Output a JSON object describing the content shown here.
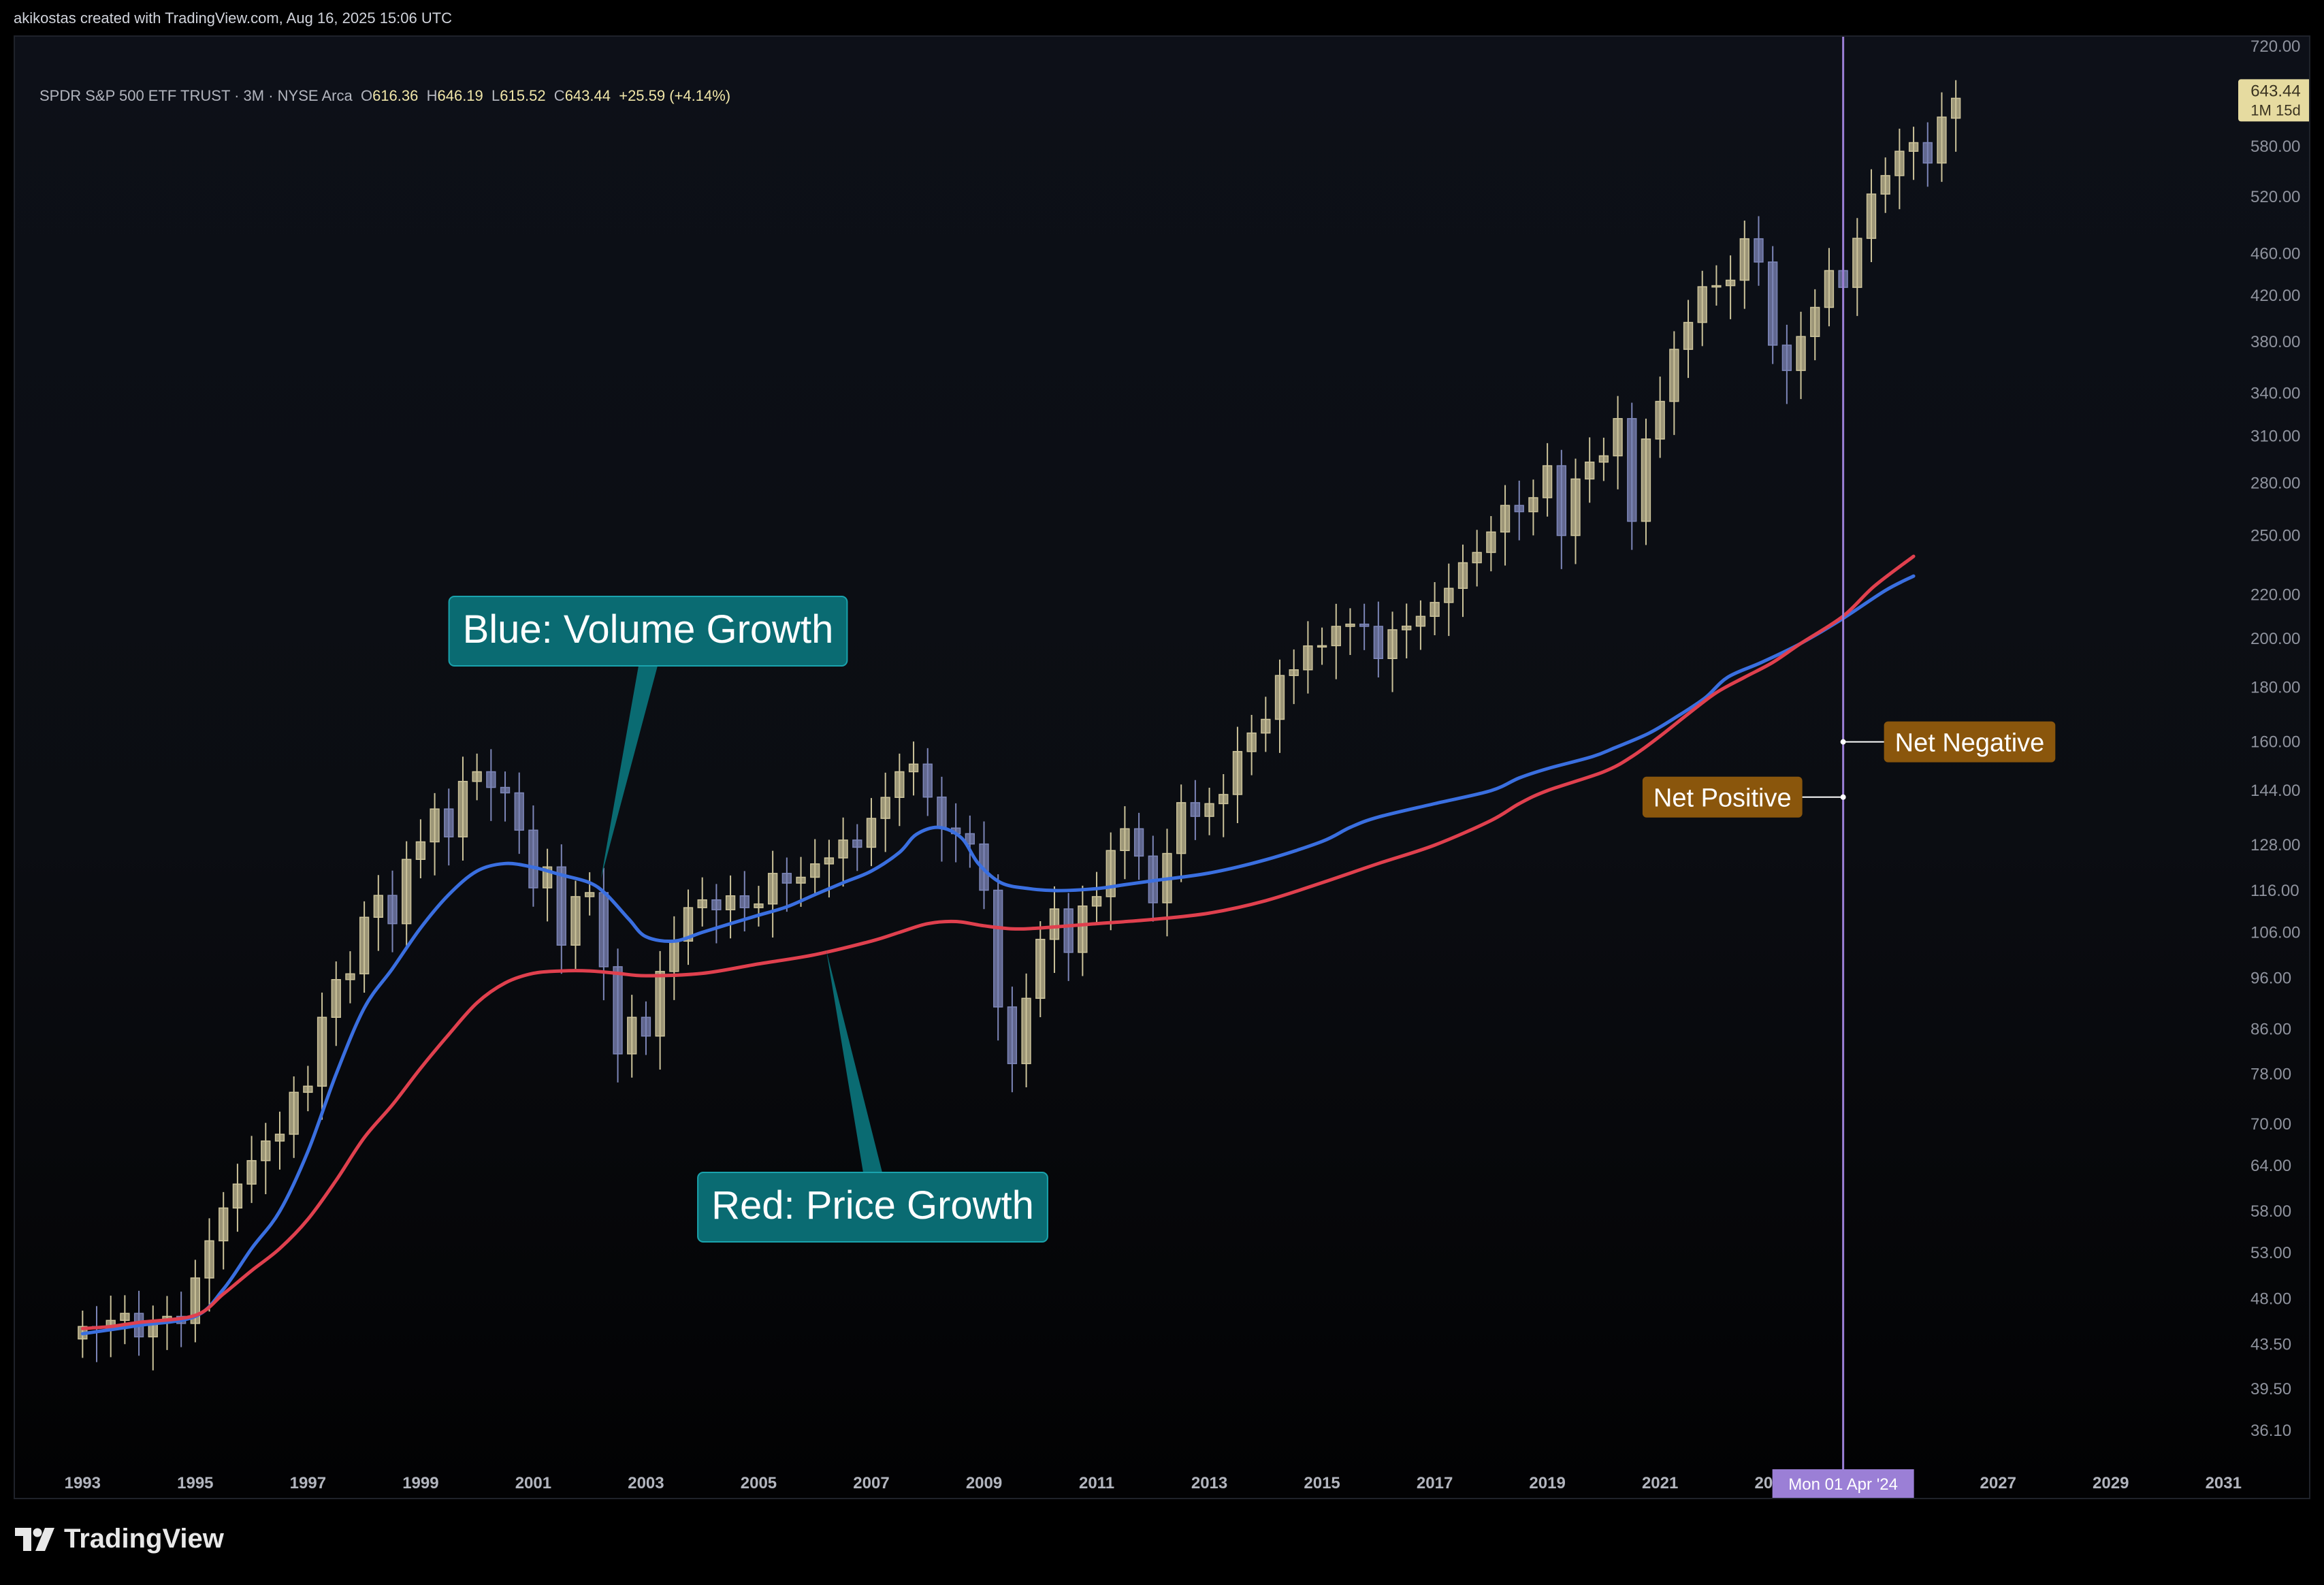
{
  "credit": "akikostas created with TradingView.com, Aug 16, 2025 15:06 UTC",
  "logo": {
    "text": "TradingView",
    "icon": "tradingview-logo-icon"
  },
  "legend": {
    "symbol": "SPDR S&P 500 ETF TRUST · 3M · NYSE Arca",
    "open_label": "O",
    "open": "616.36",
    "high_label": "H",
    "high": "646.19",
    "low_label": "L",
    "low": "615.52",
    "close_label": "C",
    "close": "643.44",
    "change": "+25.59 (+4.14%)"
  },
  "price_label": {
    "price": "643.44",
    "countdown": "1M 15d"
  },
  "crosshair": {
    "date_label": "Mon 01 Apr '24",
    "date": 2024.25
  },
  "colors": {
    "candle_up": "#ccc39a",
    "candle_down": "#7d86b8",
    "blue_line": "#3a6fe0",
    "red_line": "#e0404e",
    "annotation_bg": "#0a6b72",
    "note_bg": "#8a560c",
    "crosshair": "#9b7fd6"
  },
  "annotations": [
    {
      "text": "Blue: Volume Growth",
      "anchor_x": 2002.2,
      "anchor_y": 119
    },
    {
      "text": "Red: Price Growth",
      "anchor_x": 2006.2,
      "anchor_y": 102
    }
  ],
  "notes": [
    {
      "text": "Net Negative",
      "anchor_x": 2024.25,
      "anchor_y": 160
    },
    {
      "text": "Net Positive",
      "anchor_x": 2024.25,
      "anchor_y": 142
    }
  ],
  "chart_data": {
    "type": "candlestick",
    "yscale": "log",
    "ylim": [
      33,
      735
    ],
    "xlim": [
      1991.8,
      2030.9
    ],
    "x_ticks": [
      "1993",
      "1995",
      "1997",
      "1999",
      "2001",
      "2003",
      "2005",
      "2007",
      "2009",
      "2011",
      "2013",
      "2015",
      "2017",
      "2019",
      "2021",
      "2023",
      "2025",
      "2027",
      "2029",
      "2031"
    ],
    "y_ticks": [
      "720.00",
      "580.00",
      "520.00",
      "460.00",
      "420.00",
      "380.00",
      "340.00",
      "310.00",
      "280.00",
      "250.00",
      "220.00",
      "200.00",
      "180.00",
      "160.00",
      "144.00",
      "128.00",
      "116.00",
      "106.00",
      "96.00",
      "86.00",
      "78.00",
      "70.00",
      "64.00",
      "58.00",
      "53.00",
      "48.00",
      "43.50",
      "39.50",
      "36.10"
    ],
    "candles": {
      "start": 1993.0,
      "step": 0.25,
      "close": [
        45.2,
        45.0,
        45.8,
        46.5,
        44.2,
        45.7,
        46.2,
        45.5,
        50.2,
        54.4,
        58.4,
        61.5,
        64.7,
        67.5,
        68.5,
        75.0,
        76.0,
        88.2,
        95.7,
        96.9,
        109.5,
        114.8,
        108.0,
        124.1,
        128.9,
        138.4,
        130.3,
        146.9,
        150.0,
        145.0,
        143.3,
        132.2,
        116.7,
        122.1,
        103.1,
        114.5,
        115.5,
        98.4,
        81.5,
        88.2,
        84.7,
        97.4,
        104.0,
        111.8,
        113.7,
        111.3,
        114.7,
        111.8,
        112.7,
        120.4,
        117.9,
        119.4,
        122.9,
        124.5,
        129.4,
        127.4,
        135.6,
        141.9,
        150.0,
        152.5,
        142.0,
        132.8,
        131.2,
        128.3,
        116.1,
        90.2,
        79.8,
        91.9,
        104.4,
        111.5,
        101.5,
        112.2,
        114.5,
        126.5,
        132.6,
        125.0,
        113.0,
        125.7,
        140.3,
        136.2,
        140.0,
        142.8,
        156.7,
        163.1,
        168.0,
        184.7,
        187.0,
        196.9,
        197.0,
        205.4,
        206.4,
        205.4,
        191.6,
        203.9,
        205.5,
        209.9,
        216.3,
        223.0,
        235.7,
        241.0,
        251.9,
        266.8,
        263.2,
        271.3,
        290.7,
        250.0,
        282.5,
        293.0,
        297.0,
        321.9,
        257.8,
        308.0,
        334.1,
        373.9,
        396.3,
        428.1,
        429.1,
        434.2,
        474.9,
        451.6,
        377.3,
        357.2,
        384.4,
        409.4,
        443.3,
        427.5,
        475.3,
        523.1,
        544.4,
        573.8,
        584.6,
        559.4,
        617.8,
        643.44
      ],
      "open": [
        44.0,
        45.2,
        45.0,
        45.8,
        46.5,
        44.2,
        45.7,
        46.2,
        45.5,
        50.2,
        54.4,
        58.4,
        61.5,
        64.7,
        67.5,
        68.5,
        75.0,
        76.0,
        88.2,
        95.7,
        96.9,
        109.5,
        114.8,
        108.0,
        124.1,
        128.9,
        138.4,
        130.3,
        146.9,
        150.0,
        145.0,
        143.3,
        132.2,
        116.7,
        122.1,
        103.1,
        114.5,
        115.5,
        98.4,
        81.5,
        88.2,
        84.7,
        97.4,
        104.0,
        111.8,
        113.7,
        111.3,
        114.7,
        111.8,
        112.7,
        120.4,
        117.9,
        119.4,
        122.9,
        124.5,
        129.4,
        127.4,
        135.6,
        141.9,
        150.0,
        152.5,
        142.0,
        132.8,
        131.2,
        128.3,
        116.1,
        90.2,
        79.8,
        91.9,
        104.4,
        111.5,
        101.5,
        112.2,
        114.5,
        126.5,
        132.6,
        125.0,
        113.0,
        125.7,
        140.3,
        136.2,
        140.0,
        142.8,
        156.7,
        163.1,
        168.0,
        184.7,
        187.0,
        196.9,
        197.0,
        205.4,
        206.4,
        205.4,
        191.6,
        203.9,
        205.5,
        209.9,
        216.3,
        223.0,
        235.7,
        241.0,
        251.9,
        266.8,
        263.2,
        271.3,
        290.7,
        250.0,
        282.5,
        293.0,
        297.0,
        321.9,
        257.8,
        308.0,
        334.1,
        373.9,
        396.3,
        428.1,
        429.1,
        434.2,
        474.9,
        451.6,
        377.3,
        357.2,
        384.4,
        409.4,
        443.3,
        427.5,
        475.3,
        523.1,
        544.4,
        573.8,
        584.6,
        559.4,
        616.36
      ]
    },
    "series": [
      {
        "name": "Blue: Volume Growth",
        "color": "#3a6fe0",
        "points": [
          [
            1993,
            44.5
          ],
          [
            1994,
            45.3
          ],
          [
            1995,
            46.2
          ],
          [
            1995.5,
            49
          ],
          [
            1996,
            53.5
          ],
          [
            1996.5,
            58
          ],
          [
            1997,
            66
          ],
          [
            1997.5,
            78
          ],
          [
            1998,
            90
          ],
          [
            1998.5,
            98
          ],
          [
            1999,
            107
          ],
          [
            1999.5,
            115
          ],
          [
            2000,
            121
          ],
          [
            2000.5,
            123
          ],
          [
            2001,
            122
          ],
          [
            2001.5,
            120
          ],
          [
            2002,
            118
          ],
          [
            2002.3,
            115
          ],
          [
            2002.7,
            109
          ],
          [
            2003,
            105
          ],
          [
            2003.5,
            104
          ],
          [
            2004,
            106
          ],
          [
            2004.5,
            108
          ],
          [
            2005,
            110
          ],
          [
            2005.5,
            112
          ],
          [
            2006,
            115
          ],
          [
            2006.5,
            118
          ],
          [
            2007,
            121
          ],
          [
            2007.5,
            126
          ],
          [
            2007.8,
            131
          ],
          [
            2008.2,
            133
          ],
          [
            2008.6,
            130
          ],
          [
            2008.9,
            123
          ],
          [
            2009.3,
            118
          ],
          [
            2009.8,
            116.5
          ],
          [
            2010.3,
            116
          ],
          [
            2011,
            116.5
          ],
          [
            2011.5,
            117.5
          ],
          [
            2012,
            118.5
          ],
          [
            2013,
            120.5
          ],
          [
            2014,
            124
          ],
          [
            2015,
            129
          ],
          [
            2015.5,
            133
          ],
          [
            2016,
            136
          ],
          [
            2017,
            140
          ],
          [
            2018,
            144
          ],
          [
            2018.5,
            148
          ],
          [
            2019,
            151
          ],
          [
            2019.8,
            155
          ],
          [
            2020.2,
            158
          ],
          [
            2020.8,
            163
          ],
          [
            2021.3,
            169
          ],
          [
            2021.8,
            176
          ],
          [
            2022.2,
            184
          ],
          [
            2022.8,
            190
          ],
          [
            2023.5,
            198
          ],
          [
            2024.25,
            209
          ],
          [
            2025.0,
            222
          ],
          [
            2025.5,
            229
          ]
        ]
      },
      {
        "name": "Red: Price Growth",
        "color": "#e0404e",
        "points": [
          [
            1993,
            45
          ],
          [
            1993.5,
            45.2
          ],
          [
            1994,
            45.6
          ],
          [
            1995,
            46.3
          ],
          [
            1995.5,
            48.5
          ],
          [
            1996,
            51
          ],
          [
            1996.5,
            53.5
          ],
          [
            1997,
            57
          ],
          [
            1997.5,
            62
          ],
          [
            1998,
            68
          ],
          [
            1998.5,
            73
          ],
          [
            1999,
            79
          ],
          [
            1999.5,
            85
          ],
          [
            2000,
            91
          ],
          [
            2000.5,
            95
          ],
          [
            2001,
            97
          ],
          [
            2001.5,
            97.5
          ],
          [
            2002,
            97.5
          ],
          [
            2002.5,
            97
          ],
          [
            2003,
            96.5
          ],
          [
            2004,
            97
          ],
          [
            2005,
            99
          ],
          [
            2006,
            101
          ],
          [
            2007,
            104
          ],
          [
            2007.5,
            106
          ],
          [
            2008,
            108
          ],
          [
            2008.5,
            108.5
          ],
          [
            2009,
            107.5
          ],
          [
            2009.5,
            106.8
          ],
          [
            2010,
            107
          ],
          [
            2011,
            108
          ],
          [
            2012,
            109
          ],
          [
            2013,
            110.5
          ],
          [
            2014,
            113.5
          ],
          [
            2015,
            118
          ],
          [
            2016,
            123
          ],
          [
            2017,
            128
          ],
          [
            2018,
            135
          ],
          [
            2018.5,
            140
          ],
          [
            2019,
            144
          ],
          [
            2020,
            150
          ],
          [
            2020.5,
            155
          ],
          [
            2021,
            162
          ],
          [
            2021.5,
            170
          ],
          [
            2022,
            178
          ],
          [
            2022.5,
            184
          ],
          [
            2023,
            190
          ],
          [
            2023.5,
            198
          ],
          [
            2024.25,
            210
          ],
          [
            2024.8,
            224
          ],
          [
            2025.5,
            239
          ]
        ]
      }
    ]
  }
}
